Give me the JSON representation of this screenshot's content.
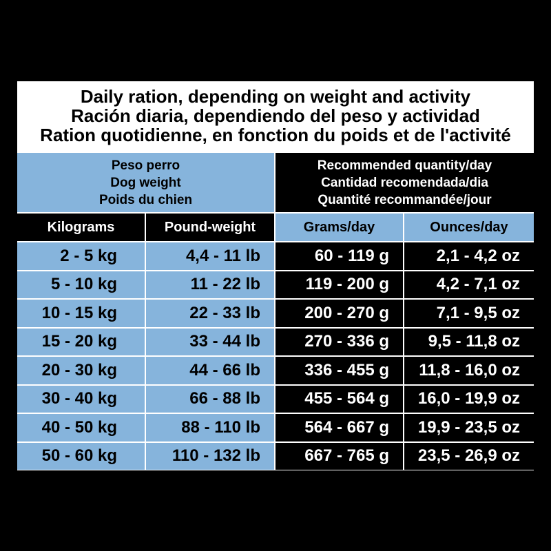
{
  "title": [
    "Daily ration, depending on weight and activity",
    "Ración diaria, dependiendo del peso y actividad",
    "Ration quotidienne, en fonction du poids et de l'activité"
  ],
  "header": {
    "dog_weight": [
      "Peso perro",
      "Dog weight",
      "Poids du chien"
    ],
    "recommended": [
      "Recommended quantity/day",
      "Cantidad recomendada/dia",
      "Quantité recommandée/jour"
    ]
  },
  "columns": [
    "Kilograms",
    "Pound-weight",
    "Grams/day",
    "Ounces/day"
  ],
  "rows": [
    [
      "2 - 5 kg",
      "4,4 - 11 lb",
      "60 - 119 g",
      "2,1 - 4,2 oz"
    ],
    [
      "5 - 10 kg",
      "11 - 22 lb",
      "119 - 200 g",
      "4,2 - 7,1 oz"
    ],
    [
      "10 - 15 kg",
      "22 - 33 lb",
      "200 - 270 g",
      "7,1 - 9,5 oz"
    ],
    [
      "15 - 20 kg",
      "33 - 44 lb",
      "270 - 336 g",
      "9,5 - 11,8 oz"
    ],
    [
      "20 - 30 kg",
      "44 - 66 lb",
      "336 - 455 g",
      "11,8 - 16,0 oz"
    ],
    [
      "30 - 40 kg",
      "66 - 88 lb",
      "455 - 564 g",
      "16,0 - 19,9 oz"
    ],
    [
      "40 - 50 kg",
      "88 - 110 lb",
      "564 - 667 g",
      "19,9 - 23,5 oz"
    ],
    [
      "50 - 60 kg",
      "110 - 132 lb",
      "667 - 765 g",
      "23,5 - 26,9 oz"
    ]
  ]
}
